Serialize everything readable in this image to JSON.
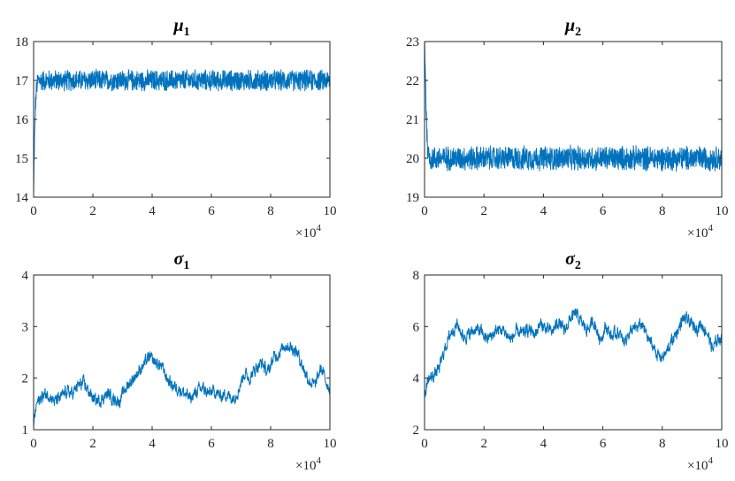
{
  "chart_data": [
    {
      "type": "line",
      "title_symbol": "μ",
      "title_sub": "1",
      "x_tick_labels": [
        "0",
        "2",
        "4",
        "6",
        "8",
        "10"
      ],
      "y_tick_labels": [
        "14",
        "15",
        "16",
        "17",
        "18"
      ],
      "x_exponent_base": "×10",
      "x_exponent_power": "4",
      "xlim": [
        0,
        100000
      ],
      "ylim": [
        14,
        18
      ],
      "series_color": "#0072BD",
      "grid": false,
      "trace": {
        "x": [
          0,
          200,
          600,
          1000,
          1500,
          2000,
          10000,
          20000,
          30000,
          40000,
          50000,
          60000,
          70000,
          80000,
          90000,
          100000
        ],
        "y": [
          14.0,
          15.2,
          16.3,
          16.8,
          17.0,
          17.0,
          17.0,
          17.0,
          17.0,
          17.0,
          17.0,
          17.0,
          17.0,
          17.0,
          17.0,
          17.0
        ],
        "band_halfwidth": 0.3
      }
    },
    {
      "type": "line",
      "title_symbol": "μ",
      "title_sub": "2",
      "x_tick_labels": [
        "0",
        "2",
        "4",
        "6",
        "8",
        "10"
      ],
      "y_tick_labels": [
        "19",
        "20",
        "21",
        "22",
        "23"
      ],
      "x_exponent_base": "×10",
      "x_exponent_power": "4",
      "xlim": [
        0,
        100000
      ],
      "ylim": [
        19,
        23
      ],
      "series_color": "#0072BD",
      "grid": false,
      "trace": {
        "x": [
          0,
          200,
          500,
          800,
          1200,
          2000,
          10000,
          20000,
          30000,
          40000,
          50000,
          60000,
          70000,
          80000,
          90000,
          100000
        ],
        "y": [
          23.0,
          22.5,
          21.4,
          20.6,
          20.1,
          20.0,
          20.0,
          20.0,
          20.0,
          20.0,
          20.0,
          20.0,
          20.0,
          20.0,
          20.0,
          20.0
        ],
        "band_halfwidth": 0.35
      }
    },
    {
      "type": "line",
      "title_symbol": "σ",
      "title_sub": "1",
      "x_tick_labels": [
        "0",
        "2",
        "4",
        "6",
        "8",
        "10"
      ],
      "y_tick_labels": [
        "1",
        "2",
        "3",
        "4"
      ],
      "x_exponent_base": "×10",
      "x_exponent_power": "4",
      "xlim": [
        0,
        100000
      ],
      "ylim": [
        1,
        4
      ],
      "series_color": "#0072BD",
      "grid": false,
      "trace": {
        "x": [
          0,
          1000,
          3000,
          5000,
          7000,
          9000,
          11000,
          13000,
          15000,
          17000,
          19000,
          21000,
          23000,
          25000,
          27000,
          29000,
          31000,
          33000,
          35000,
          37000,
          39000,
          41000,
          43000,
          45000,
          47000,
          49000,
          51000,
          53000,
          55000,
          57000,
          59000,
          61000,
          63000,
          65000,
          67000,
          69000,
          71000,
          73000,
          75000,
          77000,
          79000,
          81000,
          83000,
          85000,
          87000,
          89000,
          91000,
          93000,
          95000,
          97000,
          99000,
          100000
        ],
        "y": [
          1.1,
          1.5,
          1.65,
          1.7,
          1.55,
          1.6,
          1.75,
          1.7,
          1.85,
          1.9,
          1.7,
          1.55,
          1.6,
          1.7,
          1.6,
          1.55,
          1.8,
          1.95,
          2.1,
          2.25,
          2.4,
          2.3,
          2.25,
          2.0,
          1.85,
          1.8,
          1.7,
          1.6,
          1.75,
          1.8,
          1.7,
          1.75,
          1.65,
          1.7,
          1.6,
          1.75,
          2.1,
          2.0,
          2.2,
          2.3,
          2.1,
          2.4,
          2.5,
          2.65,
          2.6,
          2.5,
          2.2,
          1.95,
          1.85,
          2.2,
          1.9,
          1.8
        ]
      }
    },
    {
      "type": "line",
      "title_symbol": "σ",
      "title_sub": "2",
      "x_tick_labels": [
        "0",
        "2",
        "4",
        "6",
        "8",
        "10"
      ],
      "y_tick_labels": [
        "2",
        "4",
        "6",
        "8"
      ],
      "x_exponent_base": "×10",
      "x_exponent_power": "4",
      "xlim": [
        0,
        100000
      ],
      "ylim": [
        2,
        8
      ],
      "series_color": "#0072BD",
      "grid": false,
      "trace": {
        "x": [
          0,
          1000,
          3000,
          5000,
          7000,
          9000,
          11000,
          13000,
          15000,
          17000,
          19000,
          21000,
          23000,
          25000,
          27000,
          29000,
          31000,
          33000,
          35000,
          37000,
          39000,
          41000,
          43000,
          45000,
          47000,
          49000,
          51000,
          53000,
          55000,
          57000,
          59000,
          61000,
          63000,
          65000,
          67000,
          69000,
          71000,
          73000,
          75000,
          77000,
          79000,
          81000,
          83000,
          85000,
          87000,
          89000,
          91000,
          93000,
          95000,
          97000,
          99000,
          100000
        ],
        "y": [
          3.2,
          3.9,
          4.1,
          4.4,
          5.2,
          5.8,
          6.1,
          5.6,
          5.7,
          5.9,
          5.8,
          5.5,
          5.7,
          5.9,
          5.8,
          5.5,
          5.8,
          5.7,
          5.9,
          5.7,
          6.1,
          5.9,
          5.8,
          6.2,
          5.8,
          6.3,
          6.5,
          6.1,
          5.9,
          6.2,
          5.5,
          6.0,
          5.6,
          5.8,
          5.4,
          5.8,
          5.9,
          6.1,
          5.6,
          5.2,
          4.8,
          4.9,
          5.4,
          5.8,
          6.3,
          6.2,
          5.9,
          6.1,
          5.8,
          5.1,
          5.6,
          5.5
        ]
      }
    }
  ]
}
